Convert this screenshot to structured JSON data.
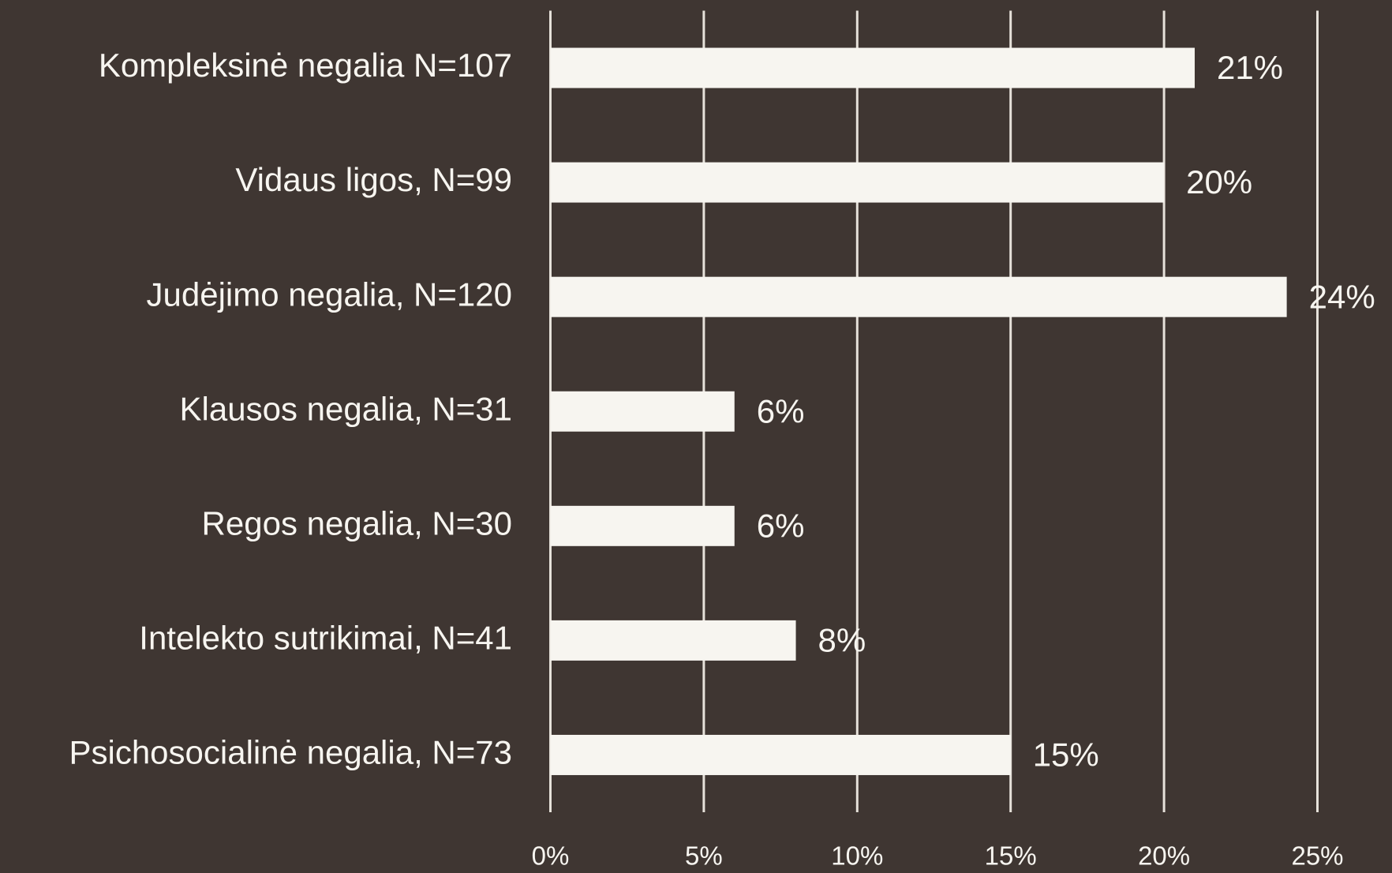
{
  "chart_data": {
    "type": "barh",
    "categories": [
      "Kompleksinė negalia N=107",
      "Vidaus ligos, N=99",
      "Judėjimo negalia, N=120",
      "Klausos negalia, N=31",
      "Regos negalia, N=30",
      "Intelekto sutrikimai, N=41",
      "Psichosocialinė negalia, N=73"
    ],
    "values": [
      21,
      20,
      24,
      6,
      6,
      8,
      15
    ],
    "value_labels": [
      "21%",
      "20%",
      "24%",
      "6%",
      "6%",
      "8%",
      "15%"
    ],
    "color": "#f7f5f0",
    "xlim": [
      0,
      25
    ],
    "xticks": [
      {
        "value": 0,
        "label": "0%"
      },
      {
        "value": 5,
        "label": "5%"
      },
      {
        "value": 10,
        "label": "10%"
      },
      {
        "value": 15,
        "label": "15%"
      },
      {
        "value": 20,
        "label": "20%"
      },
      {
        "value": 25,
        "label": "25%"
      }
    ],
    "grid": true
  }
}
